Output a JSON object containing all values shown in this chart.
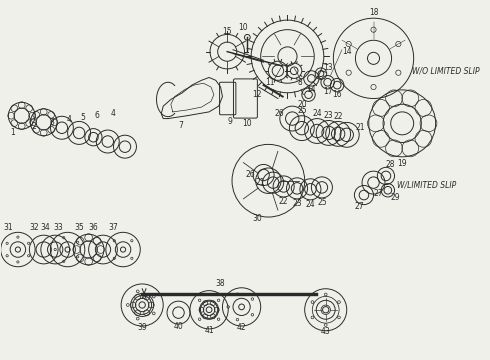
{
  "bg_color": "#f0f0eb",
  "fg_color": "#2a2a2a",
  "wo_text": "W/O LIMITED SLIP",
  "w_text": "W/LIMITED SLIP",
  "figw": 4.9,
  "figh": 3.6,
  "dpi": 100
}
